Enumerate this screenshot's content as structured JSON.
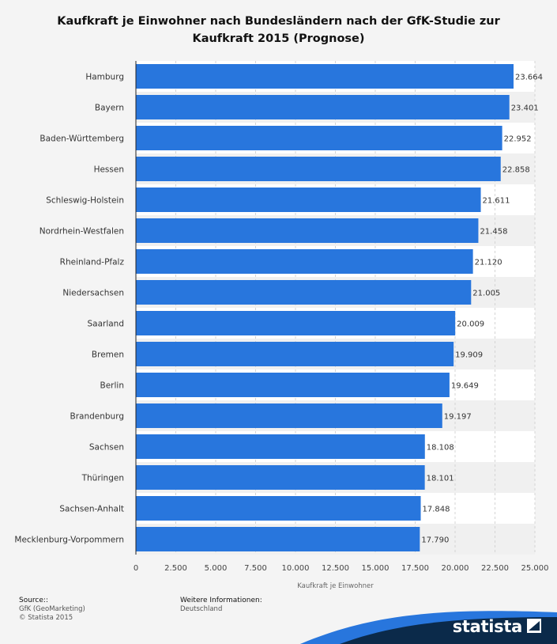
{
  "title": "Kaufkraft je Einwohner nach Bundesländern nach der GfK-Studie zur Kaufkraft 2015 (Prognose)",
  "chart_data": {
    "type": "bar",
    "orientation": "horizontal",
    "title": "Kaufkraft je Einwohner nach Bundesländern nach der GfK-Studie zur Kaufkraft 2015 (Prognose)",
    "categories": [
      "Hamburg",
      "Bayern",
      "Baden-Württemberg",
      "Hessen",
      "Schleswig-Holstein",
      "Nordrhein-Westfalen",
      "Rheinland-Pfalz",
      "Niedersachsen",
      "Saarland",
      "Bremen",
      "Berlin",
      "Brandenburg",
      "Sachsen",
      "Thüringen",
      "Sachsen-Anhalt",
      "Mecklenburg-Vorpommern"
    ],
    "values": [
      23664,
      23401,
      22952,
      22858,
      21611,
      21458,
      21120,
      21005,
      20009,
      19909,
      19649,
      19197,
      18108,
      18101,
      17848,
      17790
    ],
    "value_labels": [
      "23.664",
      "23.401",
      "22.952",
      "22.858",
      "21.611",
      "21.458",
      "21.120",
      "21.005",
      "20.009",
      "19.909",
      "19.649",
      "19.197",
      "18.108",
      "18.101",
      "17.848",
      "17.790"
    ],
    "xlabel": "Kaufkraft je Einwohner",
    "ylabel": "",
    "xlim": [
      0,
      25000
    ],
    "ticks": [
      0,
      2500,
      5000,
      7500,
      10000,
      12500,
      15000,
      17500,
      20000,
      22500,
      25000
    ],
    "tick_labels": [
      "0",
      "2.500",
      "5.000",
      "7.500",
      "10.000",
      "12.500",
      "15.000",
      "17.500",
      "20.000",
      "22.500",
      "25.000"
    ],
    "grid": true,
    "bar_color": "#2876dd"
  },
  "footer": {
    "source_heading": "Source::",
    "source_lines": [
      "GfK (GeoMarketing)",
      "© Statista 2015"
    ],
    "info_heading": "Weitere Informationen:",
    "info_lines": [
      "Deutschland"
    ]
  },
  "brand": {
    "name": "statista",
    "dark_color": "#0b2a4a",
    "accent_color": "#2876dd"
  }
}
